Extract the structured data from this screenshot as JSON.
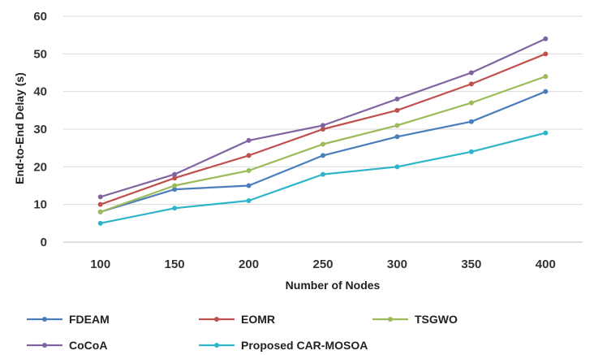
{
  "chart_data": {
    "type": "line",
    "title": "",
    "xlabel": "Number of Nodes",
    "ylabel": "End-to-End  Delay (s)",
    "x": [
      100,
      150,
      200,
      250,
      300,
      350,
      400
    ],
    "x_tick_labels": [
      "100",
      "150",
      "200",
      "250",
      "300",
      "350",
      "400"
    ],
    "ylim": [
      0,
      60
    ],
    "y_ticks": [
      0,
      10,
      20,
      30,
      40,
      50,
      60
    ],
    "y_tick_labels": [
      "0",
      "10",
      "20",
      "30",
      "40",
      "50",
      "60"
    ],
    "grid": "horizontal",
    "legend_position": "bottom",
    "series": [
      {
        "name": "FDEAM",
        "color": "#4a7ebb",
        "values": [
          8,
          14,
          15,
          23,
          28,
          32,
          40
        ]
      },
      {
        "name": "EOMR",
        "color": "#c0504d",
        "values": [
          10,
          17,
          23,
          30,
          35,
          42,
          50
        ]
      },
      {
        "name": "TSGWO",
        "color": "#9bbb59",
        "values": [
          8,
          15,
          19,
          26,
          31,
          37,
          44
        ]
      },
      {
        "name": "CoCoA",
        "color": "#8064a2",
        "values": [
          12,
          18,
          27,
          31,
          38,
          45,
          54
        ]
      },
      {
        "name": "Proposed CAR-MOSOA",
        "color": "#2fb5c9",
        "values": [
          5,
          9,
          11,
          18,
          20,
          24,
          29
        ]
      }
    ]
  }
}
